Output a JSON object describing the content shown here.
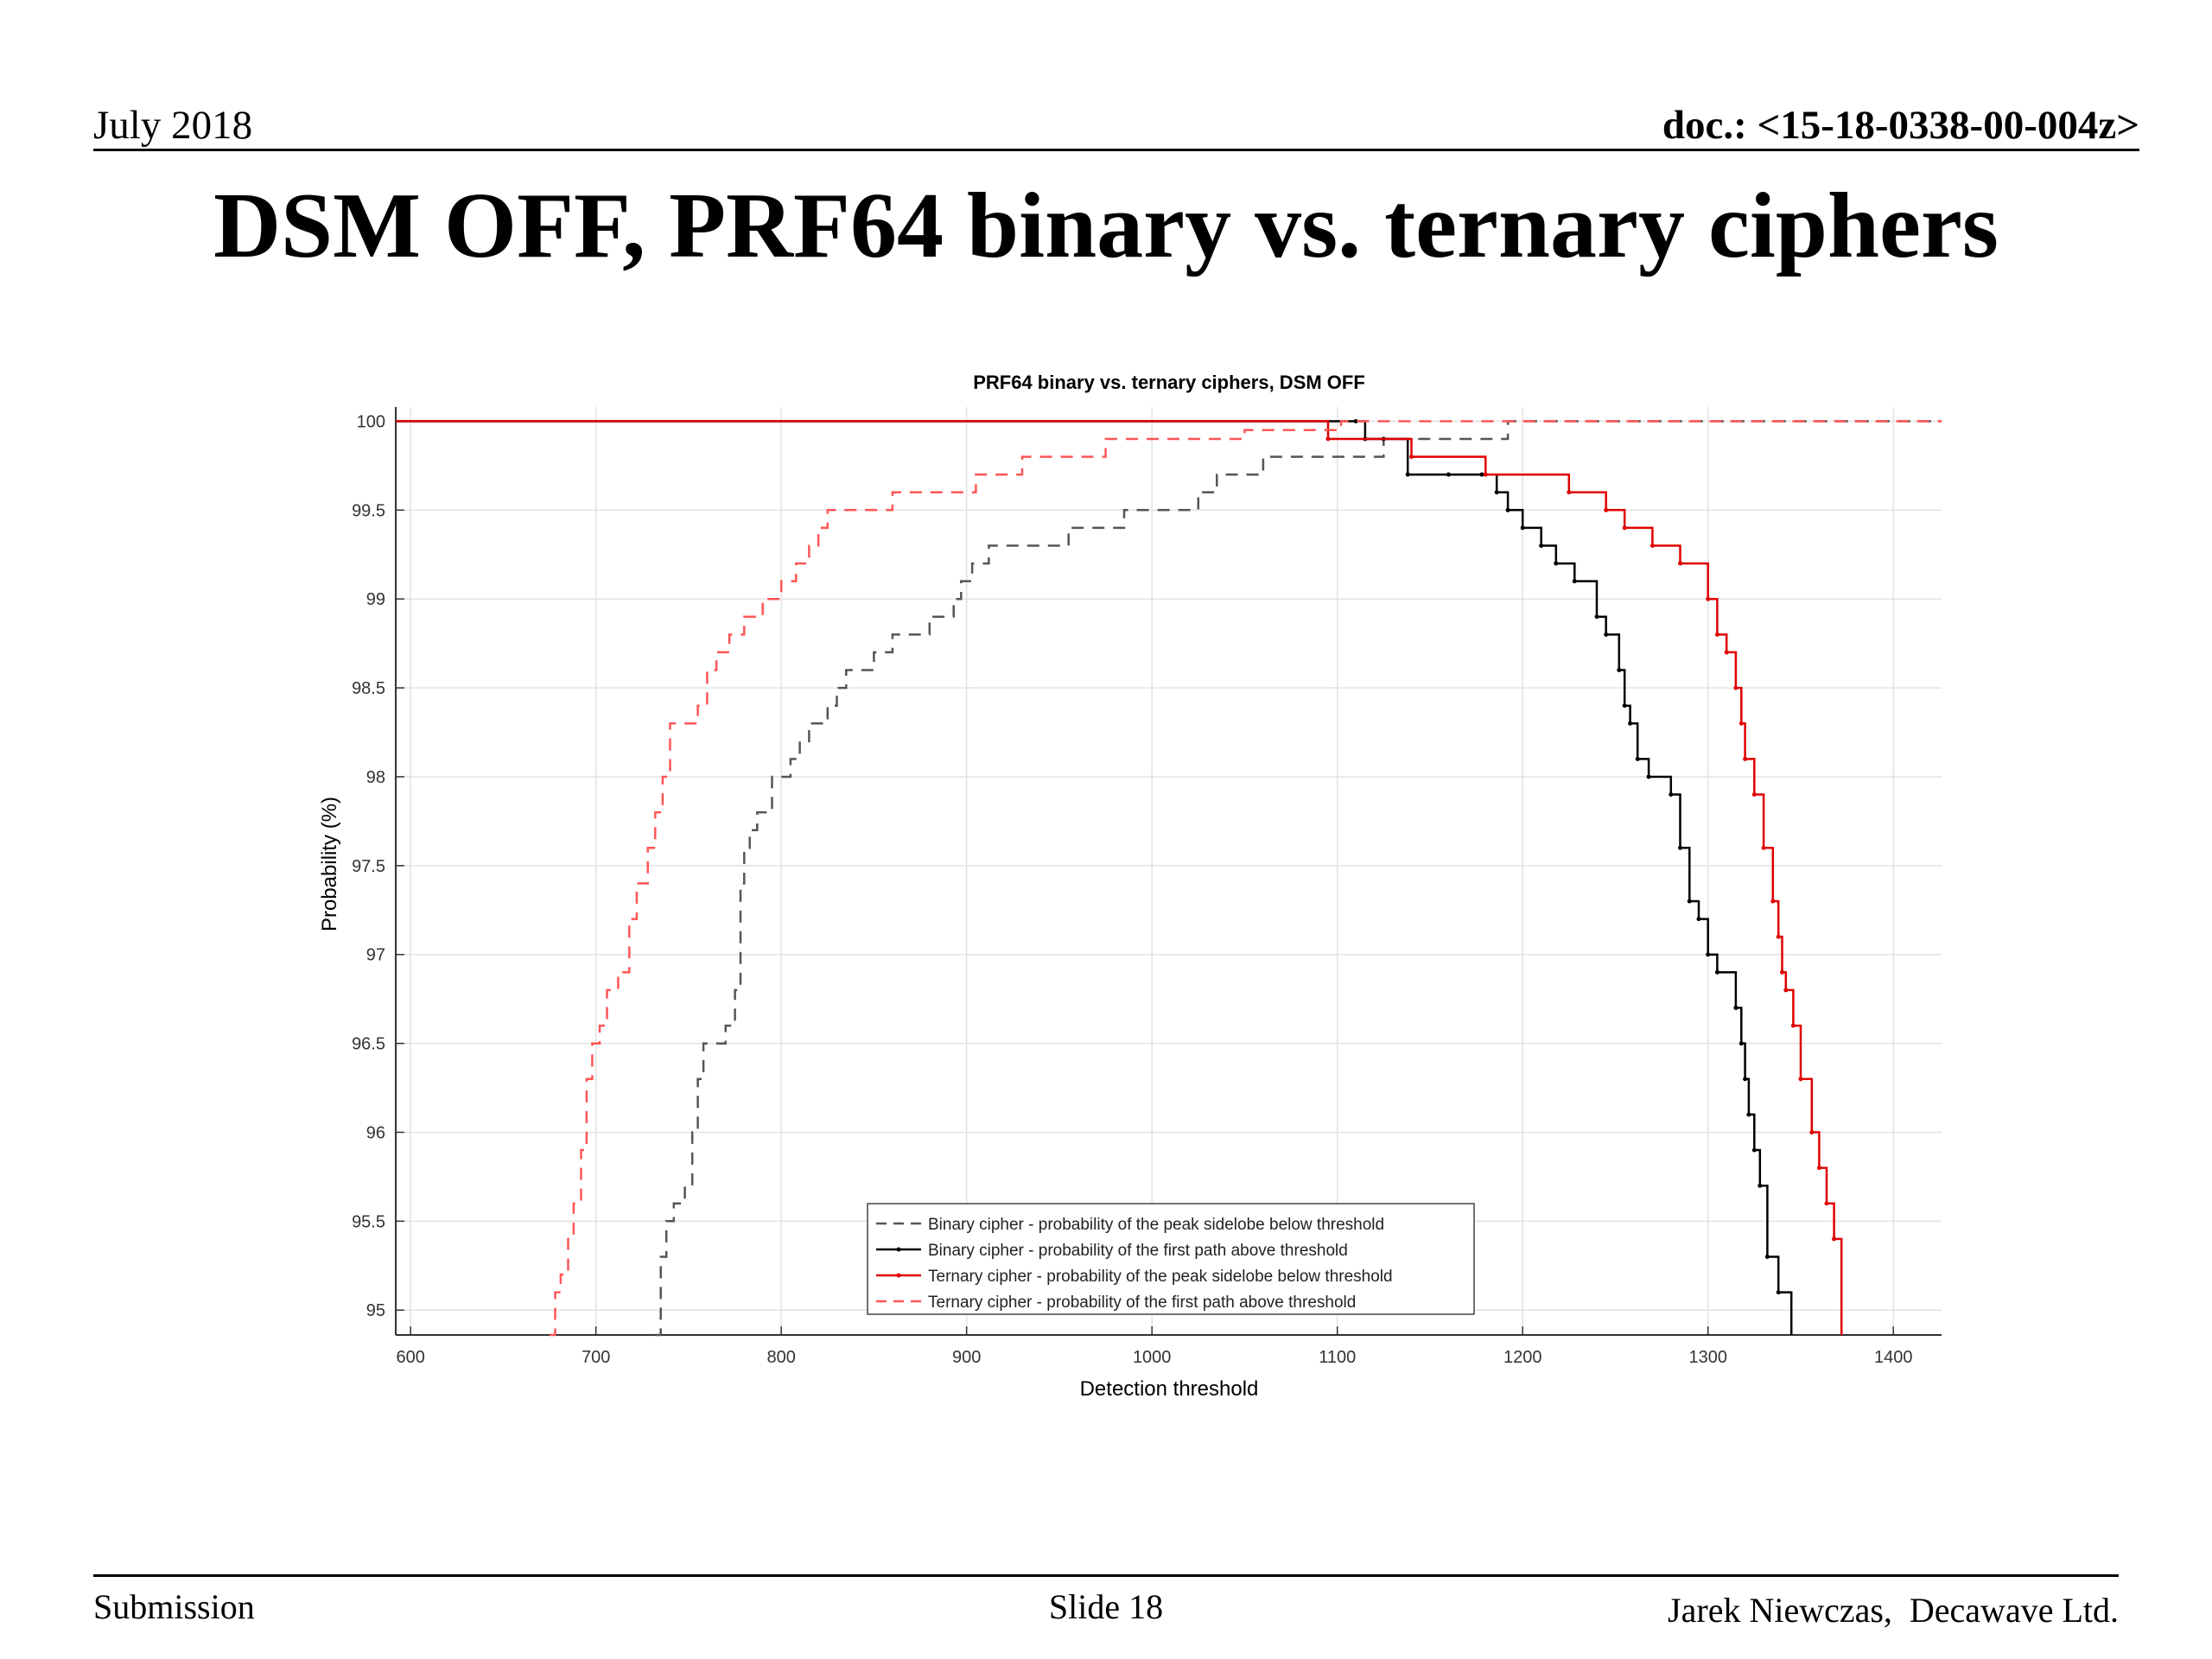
{
  "slide": {
    "date": "July 2018",
    "doc_id": "doc.: <15-18-0338-00-004z>",
    "title": "DSM OFF, PRF64 binary vs. ternary ciphers",
    "footer_left": "Submission",
    "footer_center": "Slide 18",
    "footer_right": "Jarek Niewczas,  Decawave Ltd."
  },
  "chart_data": {
    "type": "line",
    "title": "PRF64 binary vs. ternary ciphers, DSM OFF",
    "xlabel": "Detection threshold",
    "ylabel": "Probability (%)",
    "xlim": [
      592,
      1426
    ],
    "ylim": [
      94.86,
      100.08
    ],
    "xticks": [
      600,
      700,
      800,
      900,
      1000,
      1100,
      1200,
      1300,
      1400
    ],
    "yticks": [
      95,
      95.5,
      96,
      96.5,
      97,
      97.5,
      98,
      98.5,
      99,
      99.5,
      100
    ],
    "grid": true,
    "legend_position": "lower-center",
    "series": [
      {
        "name": "Binary cipher - probability of the peak sidelobe below threshold",
        "color": "#555555",
        "dash": "dashed",
        "marker": "none",
        "x": [
          732,
          735,
          738,
          742,
          748,
          752,
          755,
          758,
          770,
          775,
          778,
          780,
          783,
          787,
          795,
          805,
          810,
          815,
          825,
          830,
          835,
          850,
          860,
          880,
          893,
          897,
          903,
          912,
          930,
          955,
          970,
          985,
          995,
          1000,
          1025,
          1035,
          1040,
          1060,
          1075,
          1085,
          1100,
          1110,
          1125,
          1135,
          1160,
          1185,
          1192,
          1426
        ],
        "y": [
          94.86,
          95.3,
          95.5,
          95.6,
          95.7,
          96.0,
          96.3,
          96.5,
          96.6,
          96.8,
          97.4,
          97.6,
          97.7,
          97.8,
          98.0,
          98.1,
          98.2,
          98.3,
          98.4,
          98.5,
          98.6,
          98.7,
          98.8,
          98.9,
          99.0,
          99.1,
          99.2,
          99.3,
          99.3,
          99.4,
          99.4,
          99.5,
          99.5,
          99.5,
          99.6,
          99.7,
          99.7,
          99.8,
          99.8,
          99.8,
          99.8,
          99.8,
          99.9,
          99.9,
          99.9,
          99.9,
          100.0,
          100.0
        ]
      },
      {
        "name": "Binary cipher - probability of the first path above threshold",
        "color": "#000000",
        "dash": "solid",
        "marker": "dot",
        "x": [
          592,
          1110,
          1115,
          1125,
          1138,
          1160,
          1178,
          1186,
          1192,
          1200,
          1210,
          1218,
          1228,
          1240,
          1245,
          1252,
          1255,
          1258,
          1262,
          1268,
          1280,
          1285,
          1290,
          1295,
          1300,
          1305,
          1315,
          1318,
          1320,
          1322,
          1325,
          1328,
          1332,
          1338,
          1345
        ],
        "y": [
          100.0,
          100.0,
          99.9,
          99.9,
          99.7,
          99.7,
          99.7,
          99.6,
          99.5,
          99.4,
          99.3,
          99.2,
          99.1,
          98.9,
          98.8,
          98.6,
          98.4,
          98.3,
          98.1,
          98.0,
          97.9,
          97.6,
          97.3,
          97.2,
          97.0,
          96.9,
          96.7,
          96.5,
          96.3,
          96.1,
          95.9,
          95.7,
          95.3,
          95.1,
          94.86
        ]
      },
      {
        "name": "Ternary cipher - probability of the peak sidelobe below threshold",
        "color": "#e00000",
        "dash": "solid",
        "marker": "dot",
        "x": [
          592,
          1095,
          1140,
          1180,
          1225,
          1245,
          1255,
          1270,
          1285,
          1300,
          1305,
          1310,
          1315,
          1318,
          1320,
          1325,
          1330,
          1335,
          1338,
          1340,
          1342,
          1346,
          1350,
          1356,
          1360,
          1364,
          1368,
          1372
        ],
        "y": [
          100.0,
          99.9,
          99.8,
          99.7,
          99.6,
          99.5,
          99.4,
          99.3,
          99.2,
          99.0,
          98.8,
          98.7,
          98.5,
          98.3,
          98.1,
          97.9,
          97.6,
          97.3,
          97.1,
          96.9,
          96.8,
          96.6,
          96.3,
          96.0,
          95.8,
          95.6,
          95.4,
          94.86
        ]
      },
      {
        "name": "Ternary cipher - probability of the first path above threshold",
        "color": "#ff5555",
        "dash": "dashed",
        "marker": "none",
        "x": [
          675,
          678,
          681,
          685,
          688,
          692,
          695,
          698,
          702,
          706,
          712,
          718,
          722,
          728,
          732,
          736,
          740,
          746,
          755,
          760,
          765,
          772,
          780,
          790,
          800,
          808,
          815,
          820,
          825,
          830,
          835,
          860,
          880,
          905,
          915,
          930,
          975,
          1000,
          1050,
          1102,
          1426
        ],
        "y": [
          94.86,
          95.1,
          95.2,
          95.4,
          95.6,
          95.9,
          96.3,
          96.5,
          96.6,
          96.8,
          96.9,
          97.2,
          97.4,
          97.6,
          97.8,
          98.0,
          98.3,
          98.3,
          98.4,
          98.6,
          98.7,
          98.8,
          98.9,
          99.0,
          99.1,
          99.2,
          99.3,
          99.4,
          99.5,
          99.5,
          99.5,
          99.6,
          99.6,
          99.7,
          99.7,
          99.8,
          99.9,
          99.9,
          99.95,
          100.0,
          100.0
        ]
      }
    ]
  }
}
